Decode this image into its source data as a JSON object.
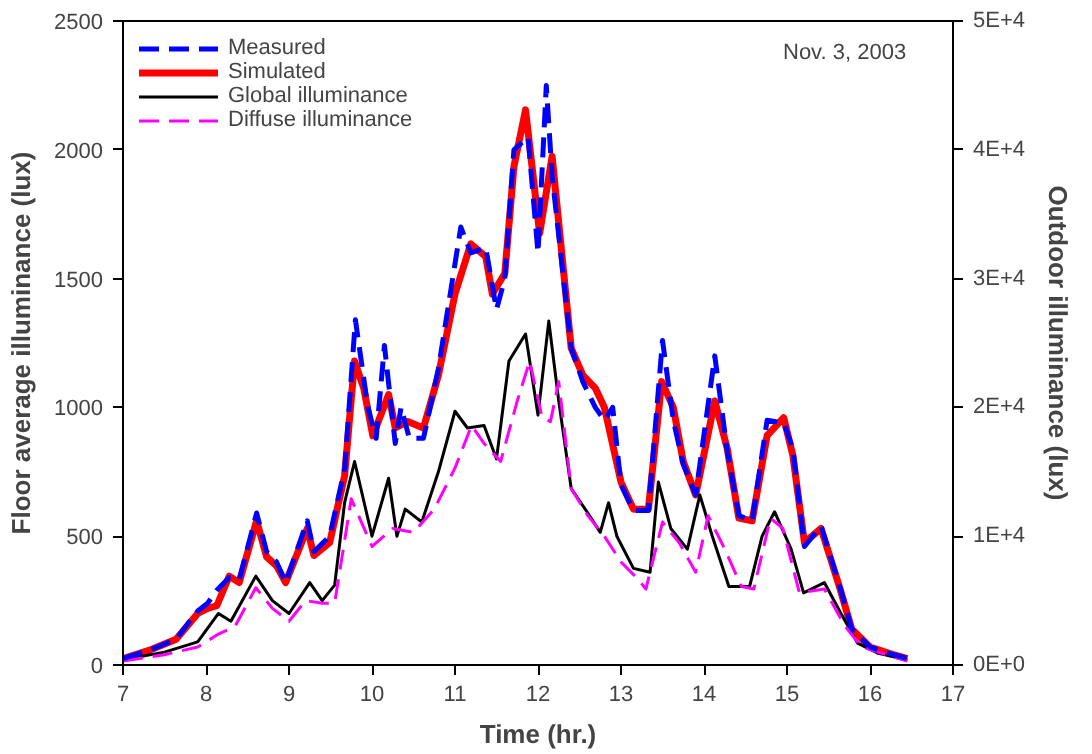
{
  "chart_data": {
    "type": "line",
    "xlabel": "Time (hr.)",
    "ylabel": "Floor average illuminance (lux)",
    "y2label": "Outdoor illuminance (lux)",
    "annotations": [
      "Nov. 3,  2003"
    ],
    "xlim": [
      7,
      17
    ],
    "xticks": [
      7,
      8,
      9,
      10,
      11,
      12,
      13,
      14,
      15,
      16,
      17
    ],
    "ylim": [
      0,
      2500
    ],
    "yticks": [
      0,
      500,
      1000,
      1500,
      2000,
      2500
    ],
    "y2lim": [
      0,
      50000
    ],
    "y2ticks": [
      {
        "value": 0,
        "label": "0E+0"
      },
      {
        "value": 10000,
        "label": "1E+4"
      },
      {
        "value": 20000,
        "label": "2E+4"
      },
      {
        "value": 30000,
        "label": "3E+4"
      },
      {
        "value": 40000,
        "label": "4E+4"
      },
      {
        "value": 50000,
        "label": "5E+4"
      }
    ],
    "grid": false,
    "legend": "top left",
    "marker": "none",
    "series": [
      {
        "name": "Measured",
        "color": "#0000ff",
        "line_style": "dashed",
        "x": [
          7.0,
          7.34,
          7.64,
          7.9,
          8.02,
          8.13,
          8.28,
          8.4,
          8.61,
          8.73,
          8.85,
          8.96,
          9.22,
          9.3,
          9.49,
          9.67,
          9.8,
          9.95,
          10.05,
          10.15,
          10.28,
          10.35,
          10.45,
          10.62,
          10.8,
          11.07,
          11.19,
          11.37,
          11.5,
          11.6,
          11.71,
          11.88,
          12.0,
          12.1,
          12.17,
          12.4,
          12.54,
          12.69,
          12.8,
          12.9,
          13.0,
          13.15,
          13.33,
          13.5,
          13.63,
          13.75,
          13.9,
          14.13,
          14.28,
          14.42,
          14.58,
          14.76,
          14.96,
          15.07,
          15.21,
          15.41,
          15.64,
          15.78,
          16.0,
          16.23,
          16.45
        ],
        "values": [
          25,
          60,
          100,
          210,
          240,
          290,
          340,
          330,
          590,
          440,
          400,
          320,
          560,
          440,
          500,
          760,
          1340,
          1000,
          880,
          1240,
          860,
          1000,
          880,
          880,
          1150,
          1700,
          1600,
          1620,
          1380,
          1500,
          2000,
          2050,
          1600,
          2250,
          1900,
          1230,
          1100,
          1000,
          950,
          1000,
          700,
          600,
          600,
          1260,
          950,
          780,
          660,
          1200,
          830,
          580,
          560,
          950,
          940,
          840,
          460,
          540,
          300,
          140,
          70,
          45,
          25
        ]
      },
      {
        "name": "Simulated",
        "color": "#ff0000",
        "line_style": "solid",
        "x": [
          7.0,
          7.34,
          7.64,
          7.9,
          8.02,
          8.13,
          8.28,
          8.4,
          8.61,
          8.73,
          8.85,
          8.96,
          9.22,
          9.3,
          9.49,
          9.67,
          9.79,
          9.9,
          10.01,
          10.2,
          10.28,
          10.43,
          10.62,
          10.8,
          11.0,
          11.19,
          11.37,
          11.45,
          11.6,
          11.71,
          11.85,
          12.02,
          12.17,
          12.4,
          12.54,
          12.69,
          12.8,
          13.0,
          13.15,
          13.33,
          13.49,
          13.63,
          13.75,
          13.9,
          14.13,
          14.28,
          14.42,
          14.58,
          14.76,
          14.96,
          15.07,
          15.21,
          15.41,
          15.64,
          15.78,
          16.0,
          16.23,
          16.45
        ],
        "values": [
          25,
          60,
          100,
          200,
          220,
          230,
          345,
          320,
          560,
          420,
          385,
          320,
          530,
          425,
          475,
          735,
          1180,
          1075,
          890,
          1050,
          920,
          945,
          920,
          1125,
          1440,
          1635,
          1585,
          1440,
          1520,
          1935,
          2155,
          1675,
          1975,
          1230,
          1125,
          1075,
          1000,
          710,
          605,
          605,
          1100,
          1000,
          790,
          660,
          1025,
          840,
          570,
          560,
          890,
          960,
          815,
          475,
          530,
          295,
          140,
          70,
          45,
          25
        ]
      },
      {
        "name": "Global illuminance",
        "color": "#000000",
        "line_style": "solid",
        "axis": "y2",
        "x": [
          7.0,
          7.5,
          7.9,
          8.15,
          8.3,
          8.6,
          8.8,
          9.0,
          9.25,
          9.4,
          9.55,
          9.67,
          9.79,
          10.0,
          10.2,
          10.3,
          10.4,
          10.6,
          10.8,
          11.0,
          11.15,
          11.35,
          11.5,
          11.65,
          11.85,
          12.0,
          12.13,
          12.25,
          12.4,
          12.6,
          12.75,
          12.85,
          12.95,
          13.15,
          13.35,
          13.45,
          13.6,
          13.8,
          13.95,
          14.1,
          14.3,
          14.55,
          14.7,
          14.85,
          15.05,
          15.2,
          15.45,
          15.65,
          15.85,
          16.1,
          16.45
        ],
        "values": [
          400,
          1000,
          1800,
          4000,
          3400,
          6900,
          5000,
          4000,
          6400,
          5000,
          6200,
          12600,
          15800,
          10000,
          14500,
          10000,
          12100,
          11100,
          15000,
          19700,
          18400,
          18600,
          16000,
          23600,
          25700,
          19400,
          26700,
          20500,
          13700,
          11800,
          10300,
          12600,
          10000,
          7500,
          7200,
          14200,
          10600,
          9000,
          13200,
          10000,
          6100,
          6100,
          10000,
          11900,
          9000,
          5600,
          6400,
          4000,
          1700,
          900,
          400
        ]
      },
      {
        "name": "Diffuse illuminance",
        "color": "#ff00ff",
        "line_style": "dashed",
        "axis": "y2",
        "x": [
          7.0,
          7.5,
          7.9,
          8.15,
          8.35,
          8.6,
          8.8,
          9.0,
          9.2,
          9.4,
          9.55,
          9.75,
          10.0,
          10.25,
          10.5,
          10.75,
          11.0,
          11.2,
          11.35,
          11.55,
          11.75,
          11.9,
          12.05,
          12.15,
          12.25,
          12.4,
          12.6,
          12.8,
          13.0,
          13.2,
          13.3,
          13.5,
          13.7,
          13.9,
          14.05,
          14.25,
          14.45,
          14.6,
          14.8,
          14.95,
          15.15,
          15.45,
          15.7,
          15.9,
          16.2,
          16.45
        ],
        "values": [
          300,
          800,
          1400,
          2400,
          3000,
          6000,
          4400,
          3400,
          5000,
          4800,
          4800,
          12900,
          9200,
          10600,
          10300,
          12100,
          15300,
          18600,
          17200,
          15800,
          20500,
          23600,
          19200,
          18900,
          22000,
          13700,
          11600,
          10000,
          8000,
          6700,
          5900,
          11100,
          9500,
          7200,
          11600,
          9000,
          6100,
          5900,
          11400,
          10600,
          5600,
          5900,
          3000,
          1400,
          800,
          300
        ]
      }
    ]
  }
}
